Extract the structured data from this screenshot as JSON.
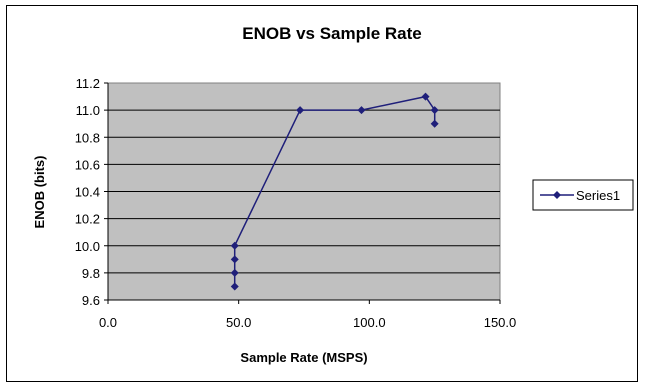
{
  "chart_data": {
    "type": "scatter",
    "title": "ENOB vs Sample Rate",
    "xlabel": "Sample Rate (MSPS)",
    "ylabel": "ENOB (bits)",
    "xlim": [
      0,
      150
    ],
    "ylim": [
      9.6,
      11.2
    ],
    "xticks": [
      "0.0",
      "50.0",
      "100.0",
      "150.0"
    ],
    "yticks": [
      "9.6",
      "9.8",
      "10.0",
      "10.2",
      "10.4",
      "10.6",
      "10.8",
      "11.0",
      "11.2"
    ],
    "grid": "horizontal",
    "legend_position": "right",
    "plot_background": "#c0c0c0",
    "series_color": "#1f1f7a",
    "series": [
      {
        "name": "Series1",
        "x": [
          48.5,
          48.5,
          48.5,
          48.5,
          73.5,
          97.0,
          121.5,
          125.0,
          125.0
        ],
        "y": [
          9.7,
          9.8,
          9.9,
          10.0,
          11.0,
          11.0,
          11.1,
          11.0,
          10.9
        ]
      }
    ]
  }
}
